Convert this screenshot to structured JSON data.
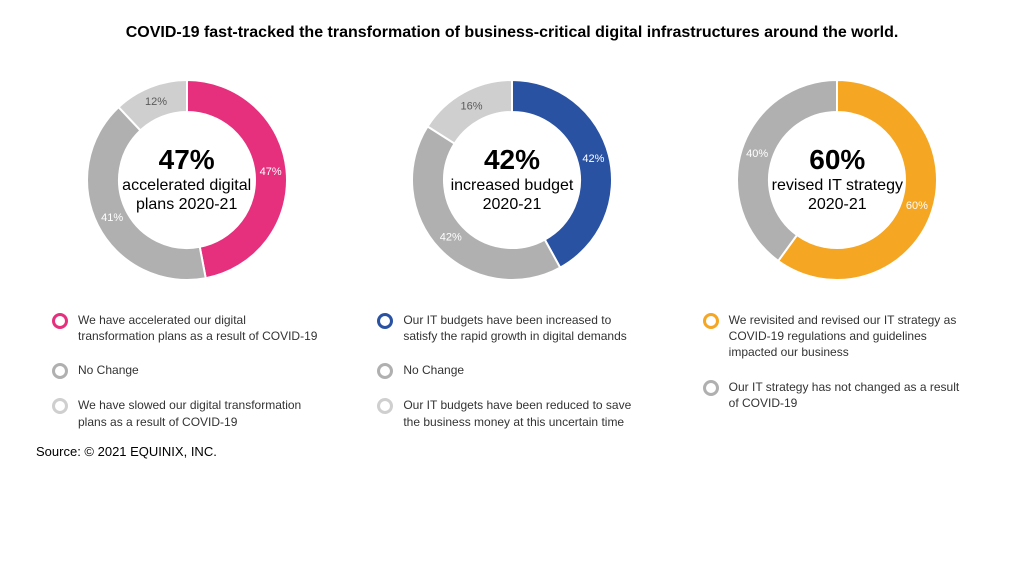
{
  "heading": "COVID-19 fast-tracked the transformation of business-critical digital infrastructures around the world.",
  "source": "Source: © 2021 EQUINIX, INC.",
  "donut": {
    "outer_radius": 100,
    "inner_radius": 68,
    "size": 220,
    "gap_stroke": "#ffffff",
    "gap_width": 2,
    "label_radius": 84,
    "label_fontsize": 11
  },
  "legend_ring": {
    "stroke_width": 3,
    "diameter": 16
  },
  "colors": {
    "grey_mid": "#b0b0b0",
    "grey_light": "#cfcfcf",
    "pink": "#e6307e",
    "blue": "#2a52a3",
    "orange": "#f5a623"
  },
  "charts": [
    {
      "id": "digital-plans",
      "center_pct": "47%",
      "center_label": "accelerated digital plans 2020-21",
      "highlight_color": "#e6307e",
      "slices": [
        {
          "value": 47,
          "label": "47%",
          "color": "#e6307e",
          "label_light": true
        },
        {
          "value": 41,
          "label": "41%",
          "color": "#b0b0b0",
          "label_light": true
        },
        {
          "value": 12,
          "label": "12%",
          "color": "#cfcfcf",
          "label_light": false
        }
      ],
      "legend": [
        {
          "color": "#e6307e",
          "text": "We have accelerated our digital transformation plans as a result of COVID-19"
        },
        {
          "color": "#b0b0b0",
          "text": "No Change"
        },
        {
          "color": "#cfcfcf",
          "text": "We have slowed our digital transformation plans as a result of COVID-19"
        }
      ]
    },
    {
      "id": "increased-budget",
      "center_pct": "42%",
      "center_label": "increased budget 2020-21",
      "highlight_color": "#2a52a3",
      "slices": [
        {
          "value": 42,
          "label": "42%",
          "color": "#2a52a3",
          "label_light": true
        },
        {
          "value": 42,
          "label": "42%",
          "color": "#b0b0b0",
          "label_light": true
        },
        {
          "value": 16,
          "label": "16%",
          "color": "#cfcfcf",
          "label_light": false
        }
      ],
      "legend": [
        {
          "color": "#2a52a3",
          "text": "Our IT budgets have been increased to satisfy the rapid growth in digital demands"
        },
        {
          "color": "#b0b0b0",
          "text": "No Change"
        },
        {
          "color": "#cfcfcf",
          "text": "Our IT budgets have been reduced to save the business money at this uncertain time"
        }
      ]
    },
    {
      "id": "revised-it",
      "center_pct": "60%",
      "center_label": "revised IT strategy 2020-21",
      "highlight_color": "#f5a623",
      "slices": [
        {
          "value": 60,
          "label": "60%",
          "color": "#f5a623",
          "label_light": true
        },
        {
          "value": 40,
          "label": "40%",
          "color": "#b0b0b0",
          "label_light": true
        }
      ],
      "legend": [
        {
          "color": "#f5a623",
          "text": "We revisited and revised our IT strategy as COVID-19 regulations and guidelines impacted our business"
        },
        {
          "color": "#b0b0b0",
          "text": "Our IT strategy has not changed as a result of COVID-19"
        }
      ]
    }
  ]
}
